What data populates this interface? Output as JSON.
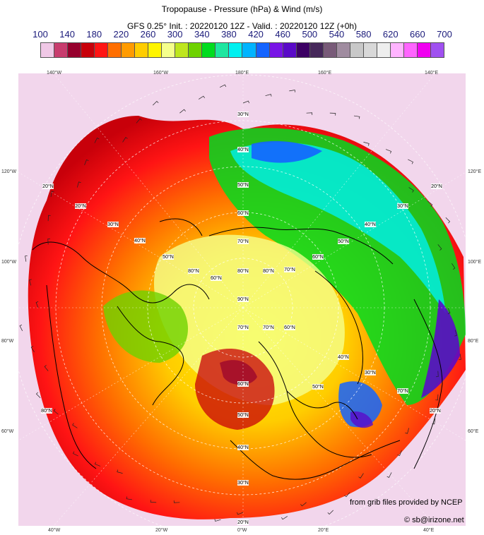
{
  "header": {
    "title": "Tropopause - Pressure (hPa) & Wind (m/s)",
    "subtitle": "GFS 0.25° Init. : 20220120 12Z - Valid. : 20220120 12Z (+0h)"
  },
  "scale": {
    "labels": [
      "100",
      "140",
      "180",
      "220",
      "260",
      "300",
      "340",
      "380",
      "420",
      "460",
      "500",
      "540",
      "580",
      "620",
      "660",
      "700"
    ],
    "colors": [
      "#f0c8e6",
      "#c83c6e",
      "#96002d",
      "#c8000a",
      "#ff1414",
      "#ff6e00",
      "#ff9b00",
      "#ffcd00",
      "#fff500",
      "#f5ff8c",
      "#bee61e",
      "#6ed200",
      "#00dc1e",
      "#1ee6a0",
      "#00f0f0",
      "#00b4ff",
      "#1464ff",
      "#7814e6",
      "#5a0ac8",
      "#3c0064",
      "#46285a",
      "#785a78",
      "#a08ca0",
      "#c8c8c8",
      "#d8d8d8",
      "#eeeeee",
      "#ffb4ff",
      "#ff64ff",
      "#f000f0",
      "#a050f0"
    ]
  },
  "map": {
    "top_labels": [
      "140°W",
      "160°W",
      "180°E",
      "160°E",
      "140°E"
    ],
    "bottom_labels": [
      "40°W",
      "20°W",
      "0°W",
      "20°E",
      "40°E"
    ],
    "left_labels": [
      "120°W",
      "100°W",
      "80°W",
      "60°W"
    ],
    "right_labels": [
      "120°E",
      "100°E",
      "80°E",
      "60°E"
    ],
    "lat_labels": [
      "30°N",
      "40°N",
      "50°N",
      "60°N",
      "70°N",
      "80°N",
      "90°N",
      "70°N",
      "60°N",
      "50°N",
      "40°N",
      "30°N",
      "20°N",
      "20°N",
      "20°N",
      "20°N",
      "80°N",
      "80°N",
      "70°N",
      "70°N",
      "60°N",
      "60°N",
      "50°N",
      "50°N",
      "40°N",
      "40°N",
      "30°N",
      "30°N",
      "70°N",
      "80°N",
      "60°N",
      "50°N",
      "40°N",
      "30°N",
      "20°N"
    ]
  },
  "credits": {
    "source": "from grib files provided by NCEP",
    "copyright": "© sb@irizone.net"
  }
}
